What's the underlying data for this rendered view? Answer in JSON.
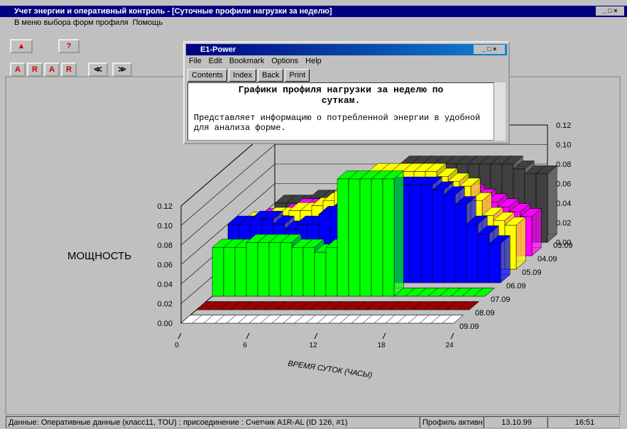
{
  "window": {
    "title": "Учет энергии и оперативный контроль - [Суточные профили нагрузки за неделю]",
    "menu": [
      "В меню выбора форм профиля",
      "Помощь"
    ],
    "toolbar": [
      "?",
      "A",
      "R",
      "A",
      "R"
    ]
  },
  "help_window": {
    "title": "E1-Power",
    "menu": [
      "File",
      "Edit",
      "Bookmark",
      "Options",
      "Help"
    ],
    "buttons": [
      "Contents",
      "Index",
      "Back",
      "Print"
    ],
    "heading": "Графики профиля нагрузки за неделю по суткам.",
    "body": "Представляет информацию о потребленной энергии в удобной для анализа форме."
  },
  "chart_data": {
    "type": "bar3d",
    "y_label": "МОЩНОСТЬ",
    "x_label": "ВРЕМЯ СУТОК (ЧАСЫ)",
    "ylim": [
      0,
      0.12
    ],
    "yticks": [
      {
        "value": 0,
        "label": "0.00"
      },
      {
        "value": 0.02,
        "label": "0.02"
      },
      {
        "value": 0.04,
        "label": "0.04"
      },
      {
        "value": 0.06,
        "label": "0.06"
      },
      {
        "value": 0.08,
        "label": "0.08"
      },
      {
        "value": 0.1,
        "label": "0.10"
      },
      {
        "value": 0.12,
        "label": "0.12"
      }
    ],
    "xlim": [
      0,
      24
    ],
    "xticks": [
      0,
      6,
      12,
      18,
      24
    ],
    "series": [
      {
        "name": "09.09",
        "color": "#ffffff",
        "values": [
          0,
          0,
          0,
          0,
          0,
          0,
          0,
          0,
          0,
          0,
          0,
          0,
          0,
          0,
          0,
          0,
          0,
          0,
          0,
          0,
          0,
          0,
          0,
          0
        ]
      },
      {
        "name": "08.09",
        "color": "#990000",
        "values": [
          0,
          0,
          0,
          0,
          0,
          0,
          0,
          0,
          0,
          0,
          0,
          0,
          0,
          0,
          0,
          0,
          0,
          0,
          0,
          0,
          0,
          0,
          0,
          0
        ]
      },
      {
        "name": "07.09",
        "color": "#00ff00",
        "values": [
          0.05,
          0.05,
          0.05,
          0.055,
          0.055,
          0.055,
          0.055,
          0.05,
          0.05,
          0.045,
          0.05,
          0.12,
          0.12,
          0.12,
          0.12,
          0.12,
          0,
          0,
          0,
          0,
          0,
          0,
          0,
          0
        ]
      },
      {
        "name": "06.09",
        "color": "#0000ff",
        "values": [
          0.06,
          0.06,
          0.065,
          0.065,
          0.06,
          0.055,
          0.06,
          0.06,
          0.07,
          0.075,
          0.09,
          0.09,
          0.1,
          0.1,
          0.1,
          0.1,
          0.1,
          0.1,
          0.095,
          0.09,
          0.08,
          0.06,
          0.05,
          0.04
        ]
      },
      {
        "name": "05.09",
        "color": "#ffff00",
        "values": [
          0.05,
          0.05,
          0.055,
          0.055,
          0.06,
          0.06,
          0.065,
          0.07,
          0.08,
          0.085,
          0.09,
          0.1,
          0.1,
          0.1,
          0.1,
          0.1,
          0.1,
          0.095,
          0.09,
          0.085,
          0.07,
          0.055,
          0.05,
          0.045
        ]
      },
      {
        "name": "04.09",
        "color": "#ff00ff",
        "values": [
          0.04,
          0.04,
          0.045,
          0.05,
          0.05,
          0.05,
          0.055,
          0.06,
          0.06,
          0.065,
          0.07,
          0.07,
          0.07,
          0.075,
          0.075,
          0.075,
          0.07,
          0.07,
          0.065,
          0.06,
          0.055,
          0.05,
          0.045,
          0.04
        ]
      },
      {
        "name": "03.09",
        "color": "#404040",
        "values": [
          0.04,
          0.04,
          0.04,
          0.045,
          0.045,
          0.05,
          0.05,
          0.055,
          0.06,
          0.065,
          0.07,
          0.08,
          0.08,
          0.08,
          0.08,
          0.08,
          0.08,
          0.08,
          0.08,
          0.08,
          0.08,
          0.075,
          0.07,
          0.07
        ]
      }
    ]
  },
  "status_bar": [
    "Данные: Оперативные данные (класс11, TOU) : присоединение : Счетчик A1R-AL (ID 126, #1)",
    "Профиль активно",
    "13.10.99",
    "16:51"
  ]
}
